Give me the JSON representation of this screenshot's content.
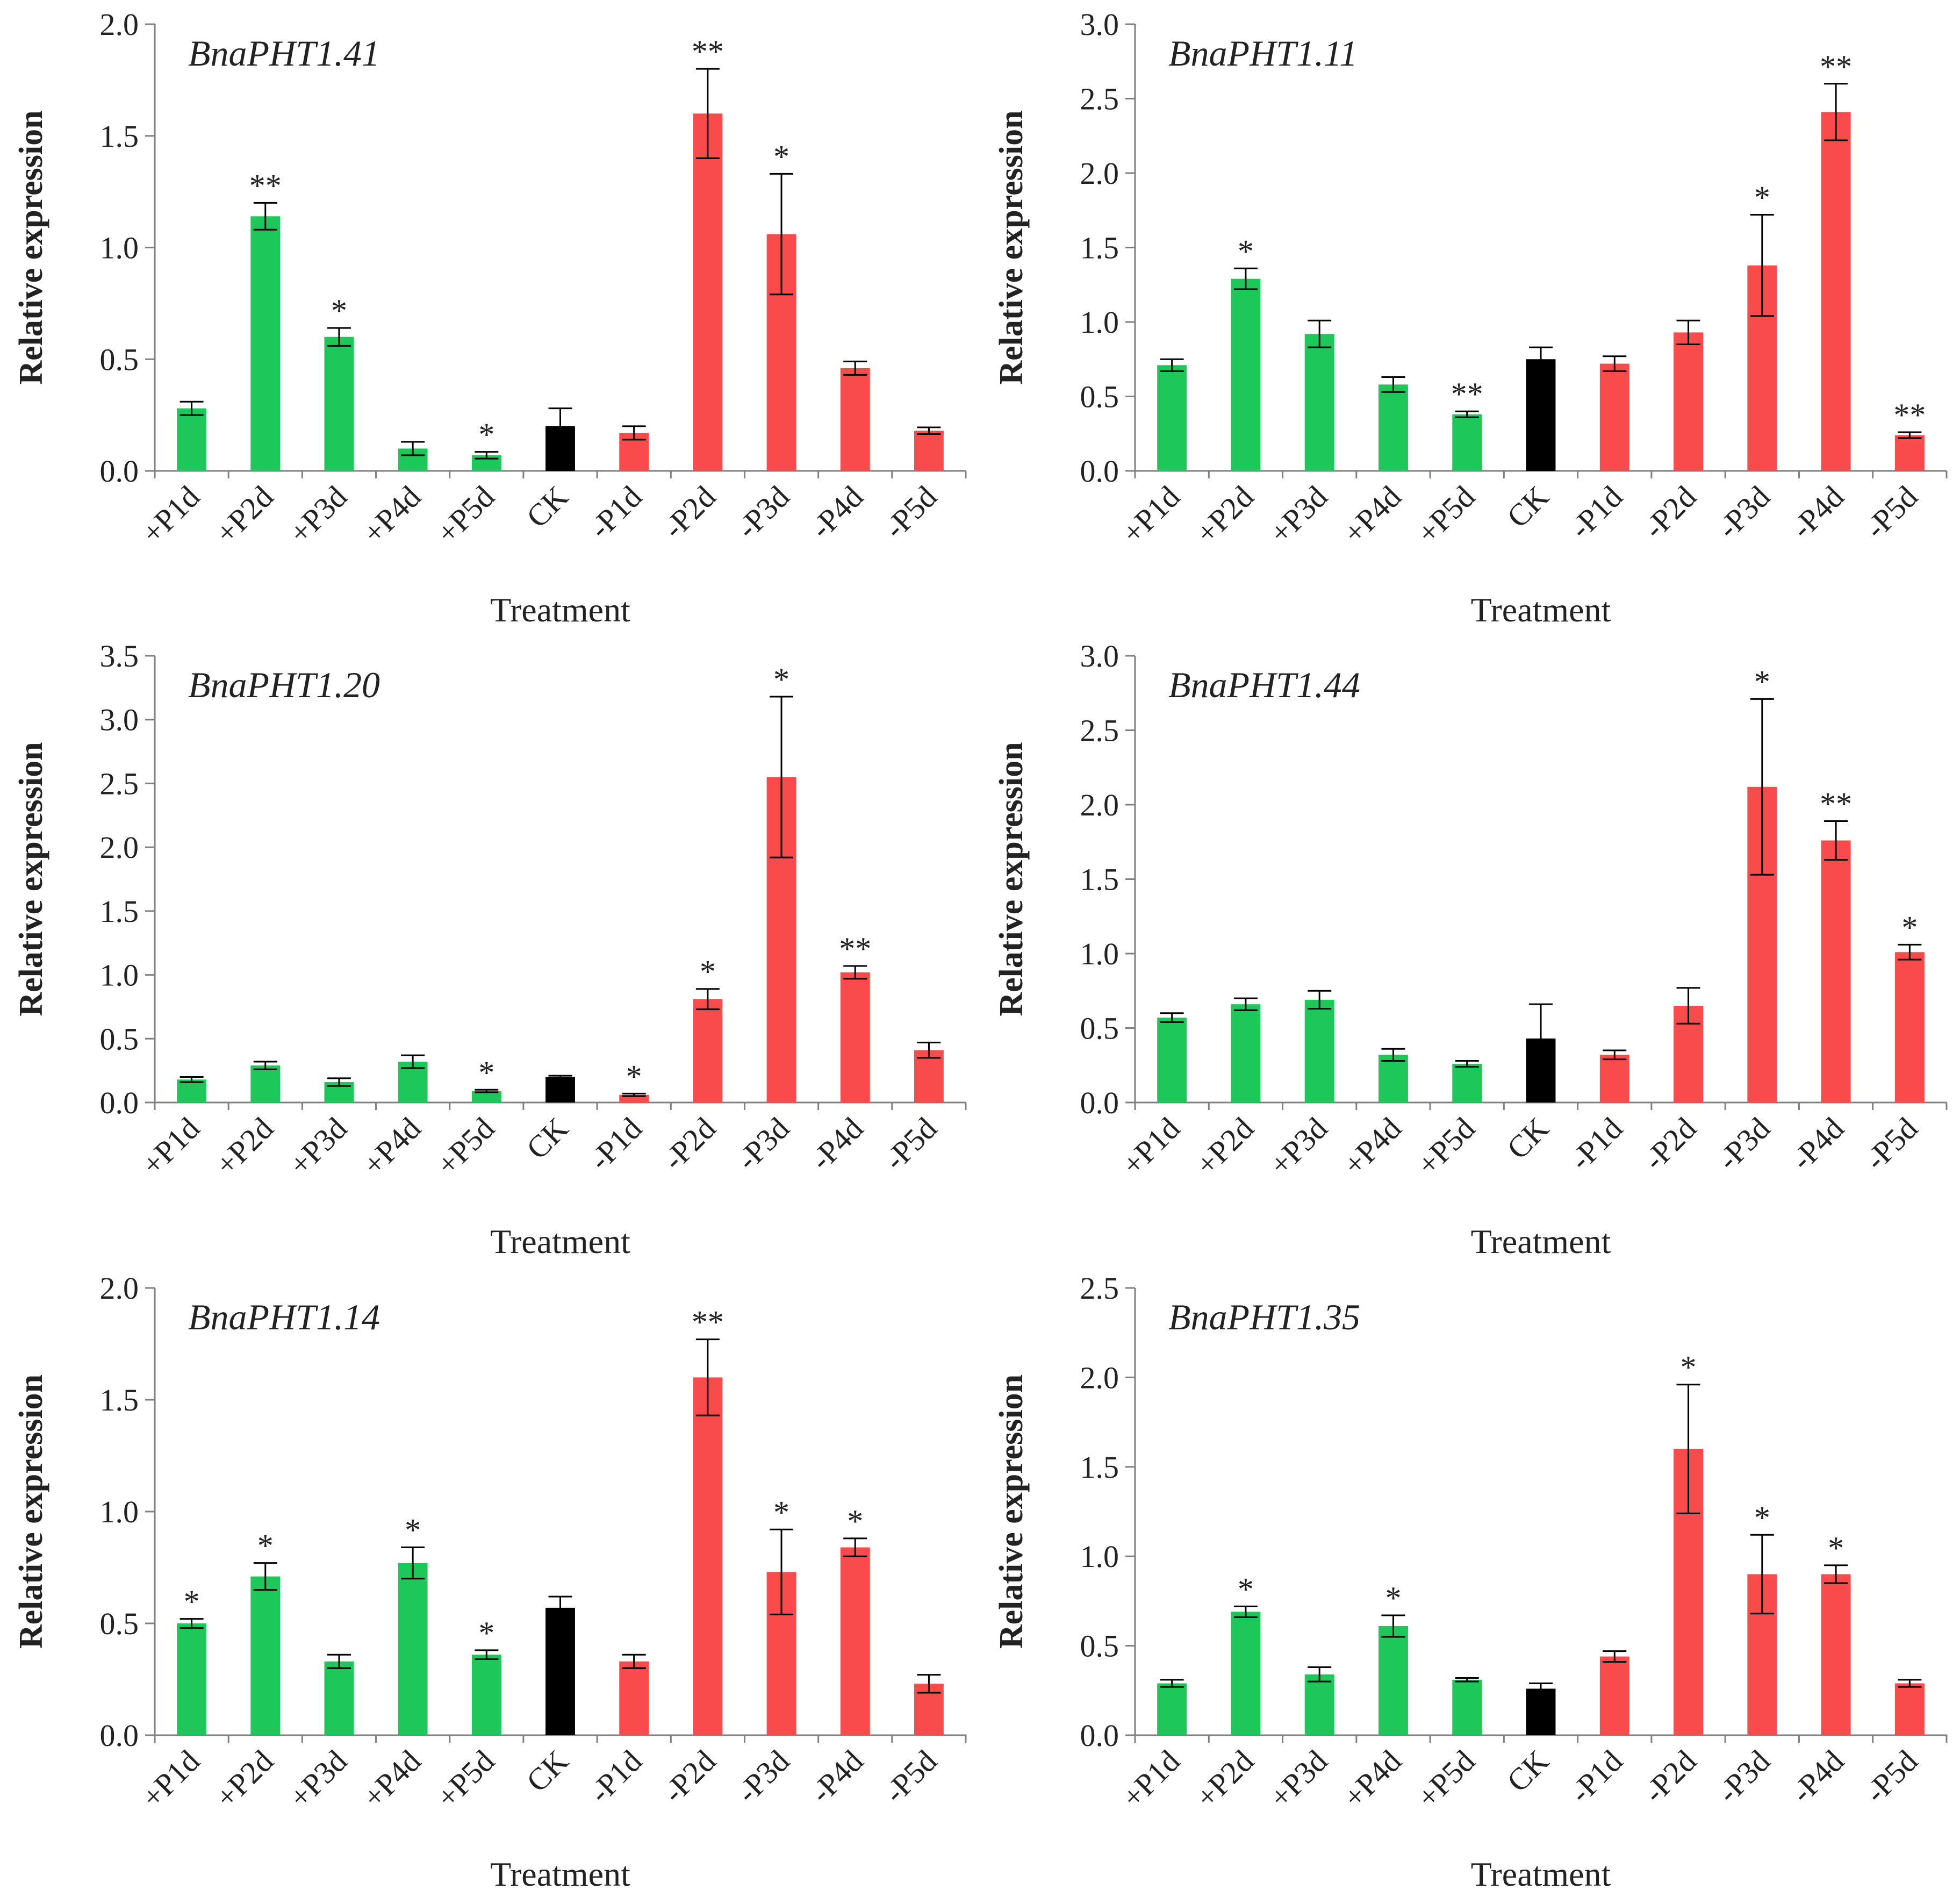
{
  "colors": {
    "plus_p": "#1ec75a",
    "ck": "#000000",
    "minus_p": "#f94b4b",
    "axis": "#808080",
    "text": "#222222"
  },
  "chart_data": [
    {
      "type": "bar",
      "title": "BnaPHT1.41",
      "xlabel": "Treatment",
      "ylabel": "Relative expression",
      "ylim": [
        0,
        2.0
      ],
      "yticks": [
        "0.0",
        "0.5",
        "1.0",
        "1.5",
        "2.0"
      ],
      "categories": [
        "+P1d",
        "+P2d",
        "+P3d",
        "+P4d",
        "+P5d",
        "CK",
        "-P1d",
        "-P2d",
        "-P3d",
        "-P4d",
        "-P5d"
      ],
      "values": [
        0.28,
        1.14,
        0.6,
        0.1,
        0.07,
        0.2,
        0.17,
        1.6,
        1.06,
        0.46,
        0.18
      ],
      "errors": [
        0.03,
        0.06,
        0.04,
        0.03,
        0.015,
        0.08,
        0.03,
        0.2,
        0.27,
        0.03,
        0.015
      ],
      "significance": [
        "",
        "**",
        "*",
        "",
        "*",
        "",
        "",
        "**",
        "*",
        "",
        ""
      ]
    },
    {
      "type": "bar",
      "title": "BnaPHT1.11",
      "xlabel": "Treatment",
      "ylabel": "Relative expression",
      "ylim": [
        0,
        3.0
      ],
      "yticks": [
        "0.0",
        "0.5",
        "1.0",
        "1.5",
        "2.0",
        "2.5",
        "3.0"
      ],
      "categories": [
        "+P1d",
        "+P2d",
        "+P3d",
        "+P4d",
        "+P5d",
        "CK",
        "-P1d",
        "-P2d",
        "-P3d",
        "-P4d",
        "-P5d"
      ],
      "values": [
        0.71,
        1.29,
        0.92,
        0.58,
        0.38,
        0.75,
        0.72,
        0.93,
        1.38,
        2.41,
        0.24
      ],
      "errors": [
        0.04,
        0.07,
        0.09,
        0.05,
        0.02,
        0.08,
        0.05,
        0.08,
        0.34,
        0.19,
        0.02
      ],
      "significance": [
        "",
        "*",
        "",
        "",
        "**",
        "",
        "",
        "",
        "*",
        "**",
        "**"
      ]
    },
    {
      "type": "bar",
      "title": "BnaPHT1.20",
      "xlabel": "Treatment",
      "ylabel": "Relative expression",
      "ylim": [
        0,
        3.5
      ],
      "yticks": [
        "0.0",
        "0.5",
        "1.0",
        "1.5",
        "2.0",
        "2.5",
        "3.0",
        "3.5"
      ],
      "categories": [
        "+P1d",
        "+P2d",
        "+P3d",
        "+P4d",
        "+P5d",
        "CK",
        "-P1d",
        "-P2d",
        "-P3d",
        "-P4d",
        "-P5d"
      ],
      "values": [
        0.18,
        0.29,
        0.16,
        0.32,
        0.09,
        0.2,
        0.06,
        0.81,
        2.55,
        1.02,
        0.41
      ],
      "errors": [
        0.02,
        0.03,
        0.03,
        0.05,
        0.01,
        0.01,
        0.01,
        0.08,
        0.63,
        0.05,
        0.06
      ],
      "significance": [
        "",
        "",
        "",
        "",
        "*",
        "",
        "*",
        "*",
        "*",
        "**",
        ""
      ]
    },
    {
      "type": "bar",
      "title": "BnaPHT1.44",
      "xlabel": "Treatment",
      "ylabel": "Relative expression",
      "ylim": [
        0,
        3.0
      ],
      "yticks": [
        "0.0",
        "0.5",
        "1.0",
        "1.5",
        "2.0",
        "2.5",
        "3.0"
      ],
      "categories": [
        "+P1d",
        "+P2d",
        "+P3d",
        "+P4d",
        "+P5d",
        "CK",
        "-P1d",
        "-P2d",
        "-P3d",
        "-P4d",
        "-P5d"
      ],
      "values": [
        0.57,
        0.66,
        0.69,
        0.32,
        0.26,
        0.43,
        0.32,
        0.65,
        2.12,
        1.76,
        1.01
      ],
      "errors": [
        0.03,
        0.04,
        0.06,
        0.04,
        0.02,
        0.23,
        0.03,
        0.12,
        0.59,
        0.13,
        0.05
      ],
      "significance": [
        "",
        "",
        "",
        "",
        "",
        "",
        "",
        "",
        "*",
        "**",
        "*"
      ]
    },
    {
      "type": "bar",
      "title": "BnaPHT1.14",
      "xlabel": "Treatment",
      "ylabel": "Relative expression",
      "ylim": [
        0,
        2.0
      ],
      "yticks": [
        "0.0",
        "0.5",
        "1.0",
        "1.5",
        "2.0"
      ],
      "categories": [
        "+P1d",
        "+P2d",
        "+P3d",
        "+P4d",
        "+P5d",
        "CK",
        "-P1d",
        "-P2d",
        "-P3d",
        "-P4d",
        "-P5d"
      ],
      "values": [
        0.5,
        0.71,
        0.33,
        0.77,
        0.36,
        0.57,
        0.33,
        1.6,
        0.73,
        0.84,
        0.23
      ],
      "errors": [
        0.02,
        0.06,
        0.03,
        0.07,
        0.02,
        0.05,
        0.03,
        0.17,
        0.19,
        0.04,
        0.04
      ],
      "significance": [
        "*",
        "*",
        "",
        "*",
        "*",
        "",
        "",
        "**",
        "*",
        "*",
        ""
      ]
    },
    {
      "type": "bar",
      "title": "BnaPHT1.35",
      "xlabel": "Treatment",
      "ylabel": "Relative expression",
      "ylim": [
        0,
        2.5
      ],
      "yticks": [
        "0.0",
        "0.5",
        "1.0",
        "1.5",
        "2.0",
        "2.5"
      ],
      "categories": [
        "+P1d",
        "+P2d",
        "+P3d",
        "+P4d",
        "+P5d",
        "CK",
        "-P1d",
        "-P2d",
        "-P3d",
        "-P4d",
        "-P5d"
      ],
      "values": [
        0.29,
        0.69,
        0.34,
        0.61,
        0.31,
        0.26,
        0.44,
        1.6,
        0.9,
        0.9,
        0.29
      ],
      "errors": [
        0.02,
        0.03,
        0.04,
        0.06,
        0.01,
        0.03,
        0.03,
        0.36,
        0.22,
        0.05,
        0.02
      ],
      "significance": [
        "",
        "*",
        "",
        "*",
        "",
        "",
        "",
        "*",
        "*",
        "*",
        ""
      ]
    }
  ]
}
